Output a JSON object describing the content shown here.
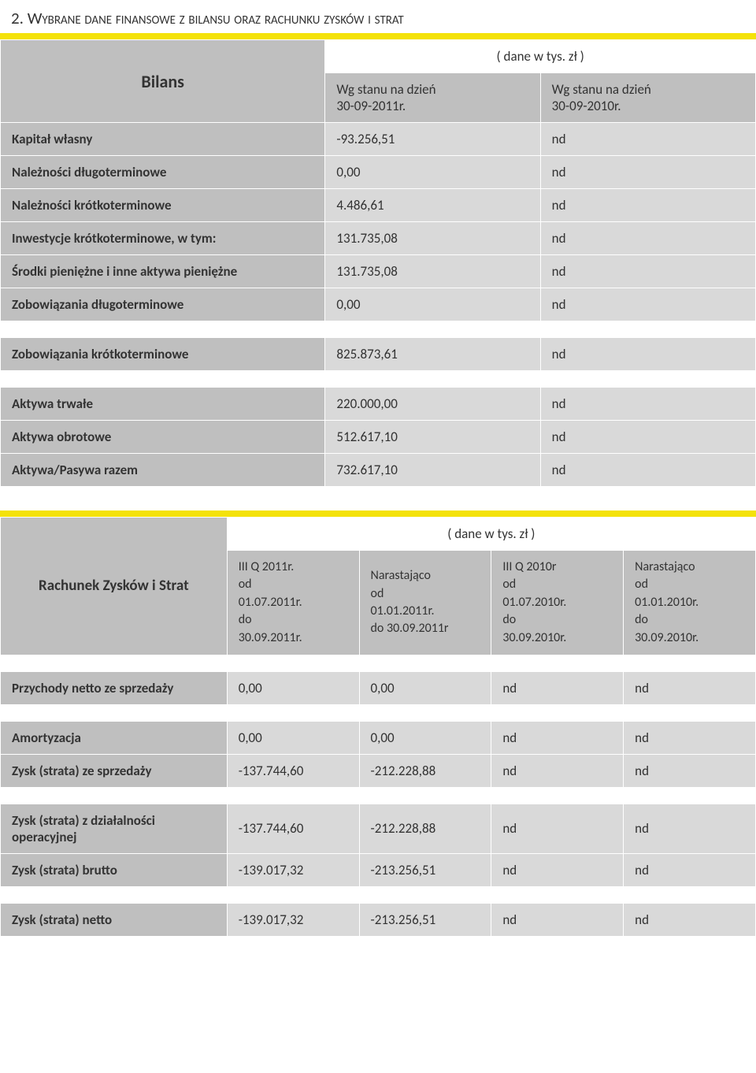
{
  "section_title": "2.  Wybrane dane finansowe z bilansu oraz rachunku zysków i strat",
  "colors": {
    "yellow": "#f4e20a",
    "header_bg": "#bfbfbf",
    "value_bg": "#d9d9d9",
    "white": "#ffffff",
    "text": "#333333"
  },
  "bilans": {
    "title": "Bilans",
    "unit_label": "( dane w tys. zł )",
    "col1_header_l1": "Wg stanu na dzień",
    "col1_header_l2": "30-09-2011r.",
    "col2_header_l1": "Wg stanu na dzień",
    "col2_header_l2": "30-09-2010r.",
    "rows_block1": [
      {
        "label": "Kapitał własny",
        "v1": "-93.256,51",
        "v2": "nd"
      },
      {
        "label": "Należności długoterminowe",
        "v1": "0,00",
        "v2": "nd"
      },
      {
        "label": "Należności krótkoterminowe",
        "v1": "4.486,61",
        "v2": "nd"
      },
      {
        "label": "Inwestycje krótkoterminowe, w tym:",
        "v1": "131.735,08",
        "v2": "nd"
      },
      {
        "label": "Środki pieniężne i inne aktywa pieniężne",
        "v1": "131.735,08",
        "v2": "nd"
      },
      {
        "label": "Zobowiązania długoterminowe",
        "v1": "0,00",
        "v2": "nd"
      }
    ],
    "rows_block2": [
      {
        "label": "Zobowiązania krótkoterminowe",
        "v1": "825.873,61",
        "v2": "nd"
      }
    ],
    "rows_block3": [
      {
        "label": "Aktywa trwałe",
        "v1": "220.000,00",
        "v2": "nd"
      },
      {
        "label": "Aktywa obrotowe",
        "v1": "512.617,10",
        "v2": "nd"
      },
      {
        "label": "Aktywa/Pasywa razem",
        "v1": "732.617,10",
        "v2": "nd"
      }
    ]
  },
  "rzis": {
    "title": "Rachunek Zysków i Strat",
    "unit_label": "( dane w tys. zł )",
    "col_headers": [
      "III Q 2011r.\nod\n01.07.2011r.\ndo\n30.09.2011r.",
      "Narastająco\nod\n01.01.2011r.\ndo 30.09.2011r",
      "III Q 2010r\nod\n01.07.2010r.\ndo\n30.09.2010r.",
      "Narastająco\nod\n01.01.2010r.\ndo\n30.09.2010r."
    ],
    "rows_block1": [
      {
        "label": "Przychody netto ze sprzedaży",
        "v1": "0,00",
        "v2": "0,00",
        "v3": "nd",
        "v4": "nd"
      }
    ],
    "rows_block2": [
      {
        "label": "Amortyzacja",
        "v1": "0,00",
        "v2": "0,00",
        "v3": "nd",
        "v4": "nd"
      },
      {
        "label": "Zysk (strata) ze sprzedaży",
        "v1": "-137.744,60",
        "v2": "-212.228,88",
        "v3": "nd",
        "v4": "nd"
      }
    ],
    "rows_block3": [
      {
        "label": "Zysk (strata) z działalności operacyjnej",
        "v1": "-137.744,60",
        "v2": "-212.228,88",
        "v3": "nd",
        "v4": "nd"
      },
      {
        "label": "Zysk (strata) brutto",
        "v1": "-139.017,32",
        "v2": "-213.256,51",
        "v3": "nd",
        "v4": "nd"
      }
    ],
    "rows_block4": [
      {
        "label": "Zysk (strata) netto",
        "v1": "-139.017,32",
        "v2": "-213.256,51",
        "v3": "nd",
        "v4": "nd"
      }
    ]
  }
}
